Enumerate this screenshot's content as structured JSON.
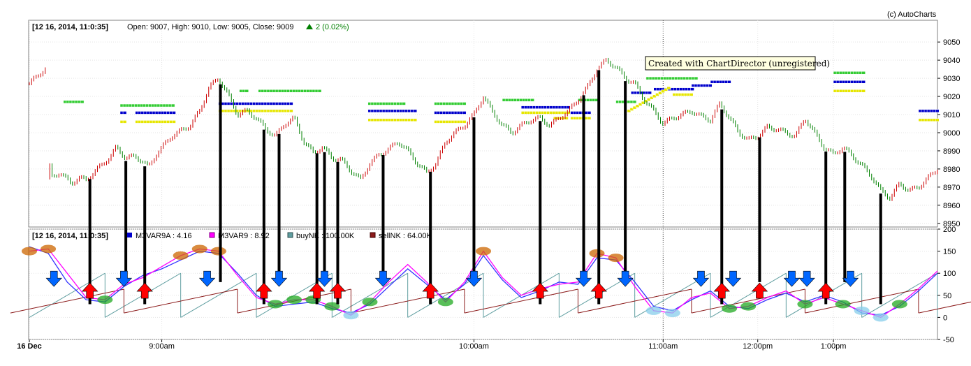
{
  "copyright": "(c) AutoCharts",
  "watermark": "Created with ChartDirector (unregistered)",
  "top_panel": {
    "timestamp": "[12 16, 2014, 11:0:35]",
    "ohlc": "Open: 9007, High: 9010, Low: 9005, Close: 9009",
    "change": "2 (0.02%)",
    "change_color": "#008000"
  },
  "bottom_panel": {
    "timestamp": "[12 16, 2014, 11:0:35]",
    "legend": [
      {
        "label": "M3VAR9A : 4.16",
        "color": "#0000cc"
      },
      {
        "label": "M3VAR9 : 8.92",
        "color": "#ff00ff"
      },
      {
        "label": "buyNK : 100.00K",
        "color": "#5f9ea0"
      },
      {
        "label": "sellNK : 64.00K",
        "color": "#8b1a1a"
      }
    ]
  },
  "colors": {
    "up_candle": "#cc0000",
    "down_candle": "#008000",
    "green_band": "#33cc33",
    "blue_band": "#0000cc",
    "yellow_band": "#e6e600",
    "buy_arrow": "#ff0000",
    "sell_arrow": "#0066ff",
    "vertical_line": "#000000",
    "indicator_pink": "#ff00ff",
    "indicator_blue": "#3333ff",
    "buy_ramp": "#5f9ea0",
    "sell_ramp": "#8b1a1a"
  },
  "chart_data": [
    {
      "type": "line",
      "name": "price",
      "y_ticks": [
        9050,
        9040,
        9030,
        9020,
        9010,
        9000,
        8990,
        8980,
        8970,
        8960,
        8950
      ],
      "ylim": [
        8948,
        9062
      ],
      "x_labels": [
        "16 Dec",
        "9:00am",
        "10:00am",
        "11:00am",
        "12:00pm",
        "1:00pm"
      ],
      "x_label_times": [
        0,
        7,
        23.5,
        33.5,
        38.5,
        42.5
      ],
      "close": [
        [
          0,
          9027
        ],
        [
          0.9,
          9036
        ],
        [
          1.1,
          8975
        ],
        [
          1.6,
          8978
        ],
        [
          2.2,
          8972
        ],
        [
          2.6,
          8975
        ],
        [
          3.0,
          8974
        ],
        [
          4.3,
          8987
        ],
        [
          4.6,
          8992
        ],
        [
          5.1,
          8986
        ],
        [
          5.6,
          8987
        ],
        [
          6.0,
          8984
        ],
        [
          6.3,
          8981
        ],
        [
          6.7,
          8988
        ],
        [
          7.1,
          8993
        ],
        [
          7.5,
          8998
        ],
        [
          8.5,
          9004
        ],
        [
          9.0,
          9012
        ],
        [
          9.5,
          9025
        ],
        [
          10.0,
          9030
        ],
        [
          10.5,
          9021
        ],
        [
          11.0,
          9010
        ],
        [
          11.5,
          9012
        ],
        [
          12.0,
          9008
        ],
        [
          12.5,
          9002
        ],
        [
          13.0,
          8998
        ],
        [
          13.5,
          9005
        ],
        [
          14.0,
          9008
        ],
        [
          14.5,
          8995
        ],
        [
          15.0,
          8989
        ],
        [
          15.5,
          8992
        ],
        [
          16.0,
          8986
        ],
        [
          16.5,
          8985
        ],
        [
          17.0,
          8979
        ],
        [
          17.5,
          8974
        ],
        [
          18.0,
          8983
        ],
        [
          18.5,
          8988
        ],
        [
          19.0,
          8991
        ],
        [
          19.5,
          8995
        ],
        [
          20.0,
          8990
        ],
        [
          20.5,
          8983
        ],
        [
          21.0,
          8978
        ],
        [
          21.5,
          8983
        ],
        [
          22.0,
          8995
        ],
        [
          22.5,
          9000
        ],
        [
          23.0,
          9004
        ],
        [
          23.5,
          9010
        ],
        [
          24.0,
          9020
        ],
        [
          24.5,
          9011
        ],
        [
          25.0,
          9004
        ],
        [
          25.5,
          9000
        ],
        [
          26.0,
          9004
        ],
        [
          26.5,
          9007
        ],
        [
          27.0,
          9008
        ],
        [
          27.5,
          9004
        ],
        [
          28.0,
          9008
        ],
        [
          28.5,
          9012
        ],
        [
          29.0,
          9018
        ],
        [
          29.5,
          9025
        ],
        [
          30.0,
          9035
        ],
        [
          30.5,
          9040
        ],
        [
          31.0,
          9036
        ],
        [
          31.5,
          9030
        ],
        [
          32.0,
          9027
        ],
        [
          32.5,
          9018
        ],
        [
          33.0,
          9012
        ],
        [
          33.5,
          9005
        ],
        [
          34.0,
          9008
        ],
        [
          34.5,
          9010
        ],
        [
          35.0,
          9012
        ],
        [
          35.5,
          9009
        ],
        [
          36.0,
          9007
        ],
        [
          36.5,
          9016
        ],
        [
          37.0,
          9008
        ],
        [
          37.5,
          9000
        ],
        [
          38.0,
          8996
        ],
        [
          38.5,
          8998
        ],
        [
          39.0,
          9003
        ],
        [
          39.5,
          9002
        ],
        [
          40.0,
          9000
        ],
        [
          40.5,
          8998
        ],
        [
          41.0,
          9008
        ],
        [
          41.5,
          9000
        ],
        [
          42.0,
          8992
        ],
        [
          42.5,
          8988
        ],
        [
          43.0,
          8992
        ],
        [
          43.5,
          8987
        ],
        [
          44.0,
          8982
        ],
        [
          44.5,
          8976
        ],
        [
          45.0,
          8968
        ],
        [
          45.5,
          8964
        ],
        [
          46.0,
          8972
        ],
        [
          46.5,
          8968
        ],
        [
          47.0,
          8970
        ],
        [
          47.5,
          8975
        ],
        [
          48.0,
          8980
        ]
      ]
    },
    {
      "type": "line",
      "name": "indicator",
      "y_ticks": [
        200,
        150,
        100,
        50,
        0,
        -50
      ],
      "ylim": [
        -50,
        200
      ],
      "series": [
        {
          "name": "M3VAR9A : 4.16",
          "values": [
            [
              0,
              160
            ],
            [
              1,
              145
            ],
            [
              2,
              80
            ],
            [
              3,
              40
            ],
            [
              4,
              35
            ],
            [
              5,
              70
            ],
            [
              6,
              95
            ],
            [
              7,
              110
            ],
            [
              8,
              130
            ],
            [
              9,
              150
            ],
            [
              10,
              145
            ],
            [
              11,
              100
            ],
            [
              12,
              50
            ],
            [
              13,
              25
            ],
            [
              14,
              30
            ],
            [
              15,
              35
            ],
            [
              16,
              20
            ],
            [
              17,
              10
            ],
            [
              18,
              30
            ],
            [
              19,
              70
            ],
            [
              20,
              110
            ],
            [
              21,
              75
            ],
            [
              22,
              40
            ],
            [
              23,
              75
            ],
            [
              24,
              140
            ],
            [
              25,
              85
            ],
            [
              26,
              45
            ],
            [
              27,
              60
            ],
            [
              28,
              80
            ],
            [
              29,
              75
            ],
            [
              30,
              135
            ],
            [
              31,
              130
            ],
            [
              32,
              80
            ],
            [
              33,
              25
            ],
            [
              34,
              15
            ],
            [
              35,
              40
            ],
            [
              36,
              60
            ],
            [
              37,
              25
            ],
            [
              38,
              20
            ],
            [
              39,
              40
            ],
            [
              40,
              55
            ],
            [
              41,
              35
            ],
            [
              42,
              50
            ],
            [
              43,
              35
            ],
            [
              44,
              10
            ],
            [
              45,
              5
            ],
            [
              46,
              25
            ],
            [
              47,
              60
            ],
            [
              48,
              100
            ]
          ]
        },
        {
          "name": "M3VAR9 : 8.92",
          "values": [
            [
              0,
              150
            ],
            [
              1,
              155
            ],
            [
              2,
              100
            ],
            [
              3,
              45
            ],
            [
              4,
              40
            ],
            [
              5,
              75
            ],
            [
              6,
              90
            ],
            [
              7,
              115
            ],
            [
              8,
              140
            ],
            [
              9,
              155
            ],
            [
              10,
              150
            ],
            [
              11,
              95
            ],
            [
              12,
              45
            ],
            [
              13,
              30
            ],
            [
              14,
              40
            ],
            [
              15,
              40
            ],
            [
              16,
              25
            ],
            [
              17,
              5
            ],
            [
              18,
              35
            ],
            [
              19,
              80
            ],
            [
              20,
              120
            ],
            [
              21,
              80
            ],
            [
              22,
              35
            ],
            [
              23,
              80
            ],
            [
              24,
              150
            ],
            [
              25,
              90
            ],
            [
              26,
              50
            ],
            [
              27,
              65
            ],
            [
              28,
              75
            ],
            [
              29,
              80
            ],
            [
              30,
              145
            ],
            [
              31,
              135
            ],
            [
              32,
              70
            ],
            [
              33,
              15
            ],
            [
              34,
              10
            ],
            [
              35,
              45
            ],
            [
              36,
              55
            ],
            [
              37,
              20
            ],
            [
              38,
              25
            ],
            [
              39,
              45
            ],
            [
              40,
              60
            ],
            [
              41,
              30
            ],
            [
              42,
              45
            ],
            [
              43,
              30
            ],
            [
              44,
              15
            ],
            [
              45,
              0
            ],
            [
              46,
              30
            ],
            [
              47,
              65
            ],
            [
              48,
              105
            ]
          ]
        }
      ],
      "buy_signals": [
        3.2,
        6.1,
        12.4,
        15.2,
        16.3,
        21.2,
        27.0,
        30.1,
        36.6,
        38.6,
        42.1
      ],
      "sell_signals": [
        1.3,
        5.0,
        9.4,
        13.2,
        15.6,
        18.7,
        23.5,
        29.3,
        31.5,
        35.5,
        37.2,
        40.3,
        41.1,
        43.4
      ],
      "vertical_markers": [
        3.2,
        5.1,
        6.1,
        10.1,
        12.4,
        13.2,
        15.2,
        15.6,
        16.3,
        18.7,
        21.2,
        23.5,
        27.0,
        29.3,
        30.1,
        31.5,
        36.6,
        38.6,
        42.1,
        43.1,
        45.0
      ]
    }
  ]
}
